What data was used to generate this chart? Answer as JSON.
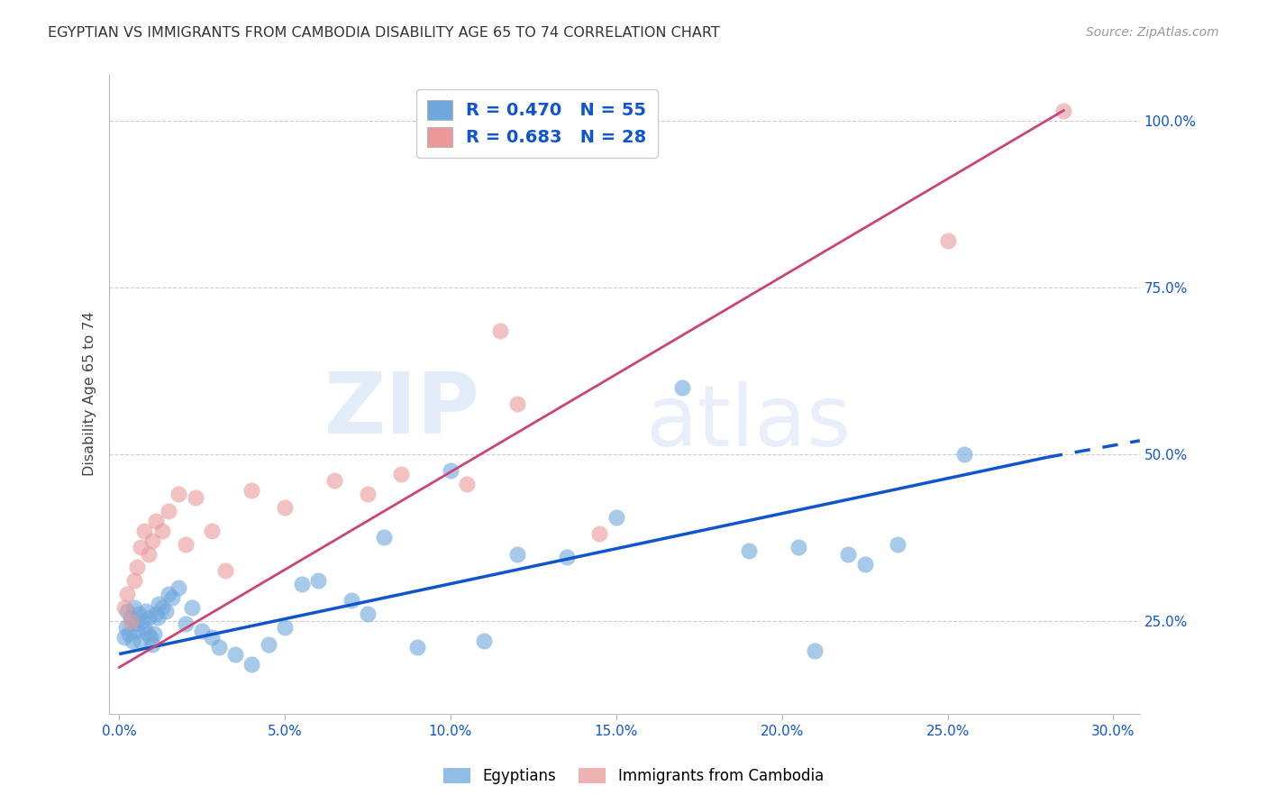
{
  "title": "EGYPTIAN VS IMMIGRANTS FROM CAMBODIA DISABILITY AGE 65 TO 74 CORRELATION CHART",
  "source": "Source: ZipAtlas.com",
  "ylabel": "Disability Age 65 to 74",
  "xlabel_vals": [
    0.0,
    5.0,
    10.0,
    15.0,
    20.0,
    25.0,
    30.0
  ],
  "ylabel_vals": [
    25.0,
    50.0,
    75.0,
    100.0
  ],
  "xlim": [
    -0.3,
    30.8
  ],
  "ylim": [
    11.0,
    107.0
  ],
  "blue_r": "0.470",
  "blue_n": "55",
  "pink_r": "0.683",
  "pink_n": "28",
  "legend_label_blue": "Egyptians",
  "legend_label_pink": "Immigrants from Cambodia",
  "blue_color": "#6fa8dc",
  "pink_color": "#ea9999",
  "blue_line_color": "#1155cc",
  "pink_line_color": "#cc4477",
  "blue_trend": [
    0.0,
    20.0,
    28.0,
    49.5
  ],
  "blue_dash_trend": [
    28.0,
    49.5,
    30.8,
    52.0
  ],
  "pink_trend": [
    0.0,
    18.0,
    28.5,
    101.5
  ],
  "blue_scatter_x": [
    0.15,
    0.2,
    0.25,
    0.3,
    0.35,
    0.4,
    0.45,
    0.5,
    0.55,
    0.6,
    0.65,
    0.7,
    0.75,
    0.8,
    0.85,
    0.9,
    0.95,
    1.0,
    1.05,
    1.1,
    1.15,
    1.2,
    1.3,
    1.4,
    1.5,
    1.6,
    1.8,
    2.0,
    2.2,
    2.5,
    2.8,
    3.0,
    3.5,
    4.0,
    4.5,
    5.0,
    5.5,
    6.0,
    7.0,
    7.5,
    8.0,
    9.0,
    10.0,
    11.0,
    12.0,
    13.5,
    15.0,
    17.0,
    19.0,
    20.5,
    21.0,
    22.0,
    22.5,
    23.5,
    25.5
  ],
  "blue_scatter_y": [
    22.5,
    24.0,
    26.5,
    23.0,
    25.5,
    22.0,
    27.0,
    24.5,
    23.5,
    26.0,
    22.0,
    25.0,
    24.0,
    26.5,
    23.0,
    25.5,
    22.5,
    21.5,
    23.0,
    26.0,
    25.5,
    27.5,
    27.0,
    26.5,
    29.0,
    28.5,
    30.0,
    24.5,
    27.0,
    23.5,
    22.5,
    21.0,
    20.0,
    18.5,
    21.5,
    24.0,
    30.5,
    31.0,
    28.0,
    26.0,
    37.5,
    21.0,
    47.5,
    22.0,
    35.0,
    34.5,
    40.5,
    60.0,
    35.5,
    36.0,
    20.5,
    35.0,
    33.5,
    36.5,
    50.0
  ],
  "pink_scatter_x": [
    0.15,
    0.25,
    0.35,
    0.45,
    0.55,
    0.65,
    0.75,
    0.9,
    1.0,
    1.1,
    1.3,
    1.5,
    1.8,
    2.0,
    2.3,
    2.8,
    3.2,
    4.0,
    5.0,
    6.5,
    7.5,
    8.5,
    10.5,
    11.5,
    12.0,
    14.5,
    25.0,
    28.5
  ],
  "pink_scatter_y": [
    27.0,
    29.0,
    25.0,
    31.0,
    33.0,
    36.0,
    38.5,
    35.0,
    37.0,
    40.0,
    38.5,
    41.5,
    44.0,
    36.5,
    43.5,
    38.5,
    32.5,
    44.5,
    42.0,
    46.0,
    44.0,
    47.0,
    45.5,
    68.5,
    57.5,
    38.0,
    82.0,
    101.5
  ]
}
